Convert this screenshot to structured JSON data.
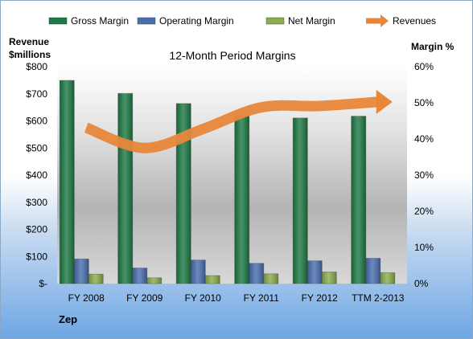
{
  "company": "Zep",
  "chart_data": {
    "type": "bar",
    "title": "12-Month Period Margins",
    "categories": [
      "FY 2008",
      "FY 2009",
      "FY 2010",
      "FY 2011",
      "FY 2012",
      "TTM 2-2013"
    ],
    "left_axis": {
      "label_line1": "Revenue",
      "label_line2": "$millions",
      "range": [
        0,
        800
      ],
      "ticks": [
        0,
        100,
        200,
        300,
        400,
        500,
        600,
        700,
        800
      ],
      "tick_labels": [
        "$-",
        "$100",
        "$200",
        "$300",
        "$400",
        "$500",
        "$600",
        "$700",
        "$800"
      ]
    },
    "right_axis": {
      "label": "Margin %",
      "range": [
        0,
        60
      ],
      "ticks": [
        0,
        10,
        20,
        30,
        40,
        50,
        60
      ],
      "tick_labels": [
        "0%",
        "10%",
        "20%",
        "30%",
        "40%",
        "50%",
        "60%"
      ]
    },
    "series": [
      {
        "name": "Gross Margin",
        "kind": "bar",
        "axis": "right",
        "color": "#1e7a45",
        "values": [
          56.2,
          52.6,
          49.8,
          46.5,
          45.8,
          46.3
        ]
      },
      {
        "name": "Operating Margin",
        "kind": "bar",
        "axis": "right",
        "color": "#4a6fb0",
        "values": [
          6.8,
          4.3,
          6.5,
          5.6,
          6.3,
          7.0
        ]
      },
      {
        "name": "Net Margin",
        "kind": "bar",
        "axis": "right",
        "color": "#8bad4c",
        "values": [
          2.6,
          1.6,
          2.2,
          2.7,
          3.2,
          3.0
        ]
      },
      {
        "name": "Revenues",
        "kind": "line",
        "axis": "left",
        "color": "#e8873a",
        "values": [
          575,
          500,
          570,
          650,
          655,
          670
        ]
      }
    ],
    "legend_position": "top",
    "grid": false
  }
}
